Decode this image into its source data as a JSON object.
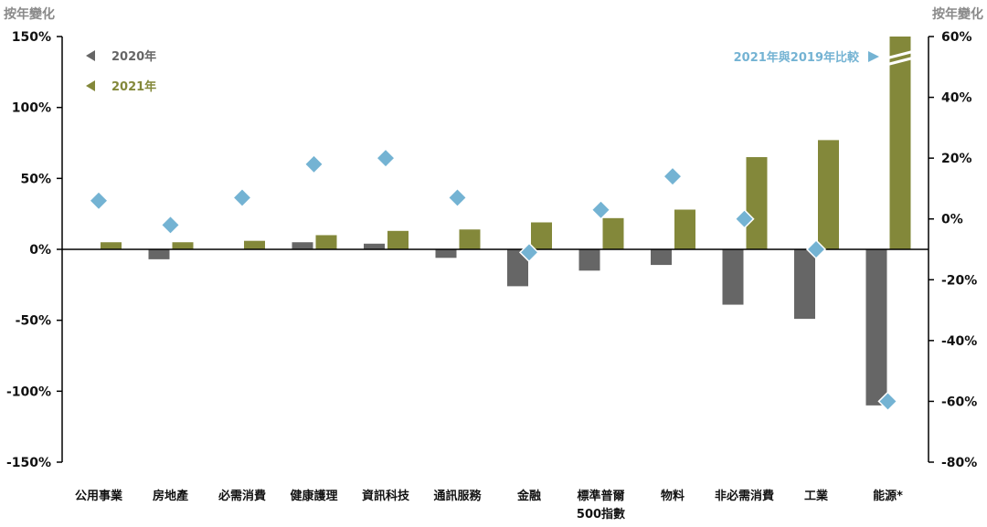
{
  "chart_data": {
    "type": "bar",
    "left_axis_title": "按年變化",
    "right_axis_title": "按年變化",
    "left_ticks": [
      "150%",
      "100%",
      "50%",
      "0%",
      "-50%",
      "-100%",
      "-150%"
    ],
    "right_ticks": [
      "60%",
      "40%",
      "20%",
      "0%",
      "-20%",
      "-40%",
      "-60%",
      "-80%"
    ],
    "left_ylim": [
      -150,
      150
    ],
    "right_ylim": [
      -80,
      60
    ],
    "categories": [
      [
        "公用事業"
      ],
      [
        "房地產"
      ],
      [
        "必需消費"
      ],
      [
        "健康護理"
      ],
      [
        "資訊科技"
      ],
      [
        "通訊服務"
      ],
      [
        "金融"
      ],
      [
        "標準普爾",
        "500指數"
      ],
      [
        "物料"
      ],
      [
        "非必需消費"
      ],
      [
        "工業"
      ],
      [
        "能源*"
      ]
    ],
    "series": [
      {
        "name": "2020年",
        "color": "#666666",
        "axis": "left",
        "values": [
          0,
          -7,
          0,
          5,
          4,
          -6,
          -26,
          -15,
          -11,
          -39,
          -49,
          -110
        ]
      },
      {
        "name": "2021年",
        "color": "#83883a",
        "axis": "left",
        "values": [
          5,
          5,
          6,
          10,
          13,
          14,
          19,
          22,
          28,
          65,
          77,
          150
        ]
      },
      {
        "name": "2021年與2019年比較",
        "color": "#74b3d3",
        "axis": "right",
        "marker": "diamond",
        "values": [
          6,
          -2,
          7,
          18,
          20,
          7,
          -11,
          3,
          14,
          0,
          -10,
          -60
        ]
      }
    ],
    "axis_break_note": "能源 2021年 bar truncated at top of axis"
  }
}
